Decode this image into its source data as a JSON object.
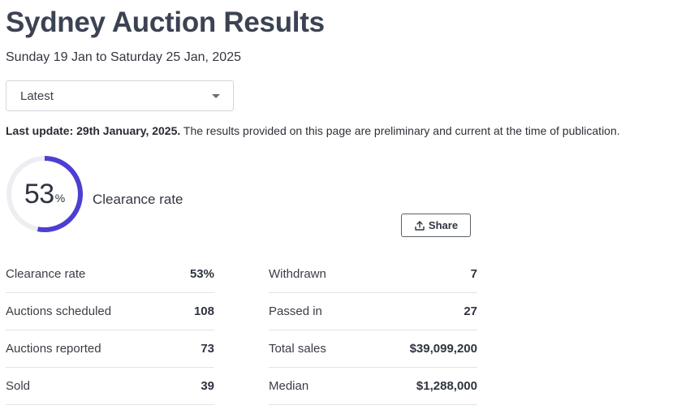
{
  "page": {
    "title": "Sydney Auction Results",
    "date_range": "Sunday 19 Jan to Saturday 25 Jan, 2025"
  },
  "period_select": {
    "selected": "Latest"
  },
  "update": {
    "bold": "Last update: 29th January, 2025.",
    "note": " The results provided on this page are preliminary and current at the time of publication."
  },
  "clearance": {
    "number": "53",
    "unit": "%",
    "label": "Clearance rate",
    "rate": 0.53,
    "ring_color": "#4d3fd1",
    "track_color": "#eceef2"
  },
  "share": {
    "label": "Share",
    "icon": "share-upload-icon"
  },
  "stats_left": [
    {
      "label": "Clearance rate",
      "value": "53%"
    },
    {
      "label": "Auctions scheduled",
      "value": "108"
    },
    {
      "label": "Auctions reported",
      "value": "73"
    },
    {
      "label": "Sold",
      "value": "39"
    }
  ],
  "stats_right": [
    {
      "label": "Withdrawn",
      "value": "7"
    },
    {
      "label": "Passed in",
      "value": "27"
    },
    {
      "label": "Total sales",
      "value": "$39,099,200"
    },
    {
      "label": "Median",
      "value": "$1,288,000"
    }
  ]
}
